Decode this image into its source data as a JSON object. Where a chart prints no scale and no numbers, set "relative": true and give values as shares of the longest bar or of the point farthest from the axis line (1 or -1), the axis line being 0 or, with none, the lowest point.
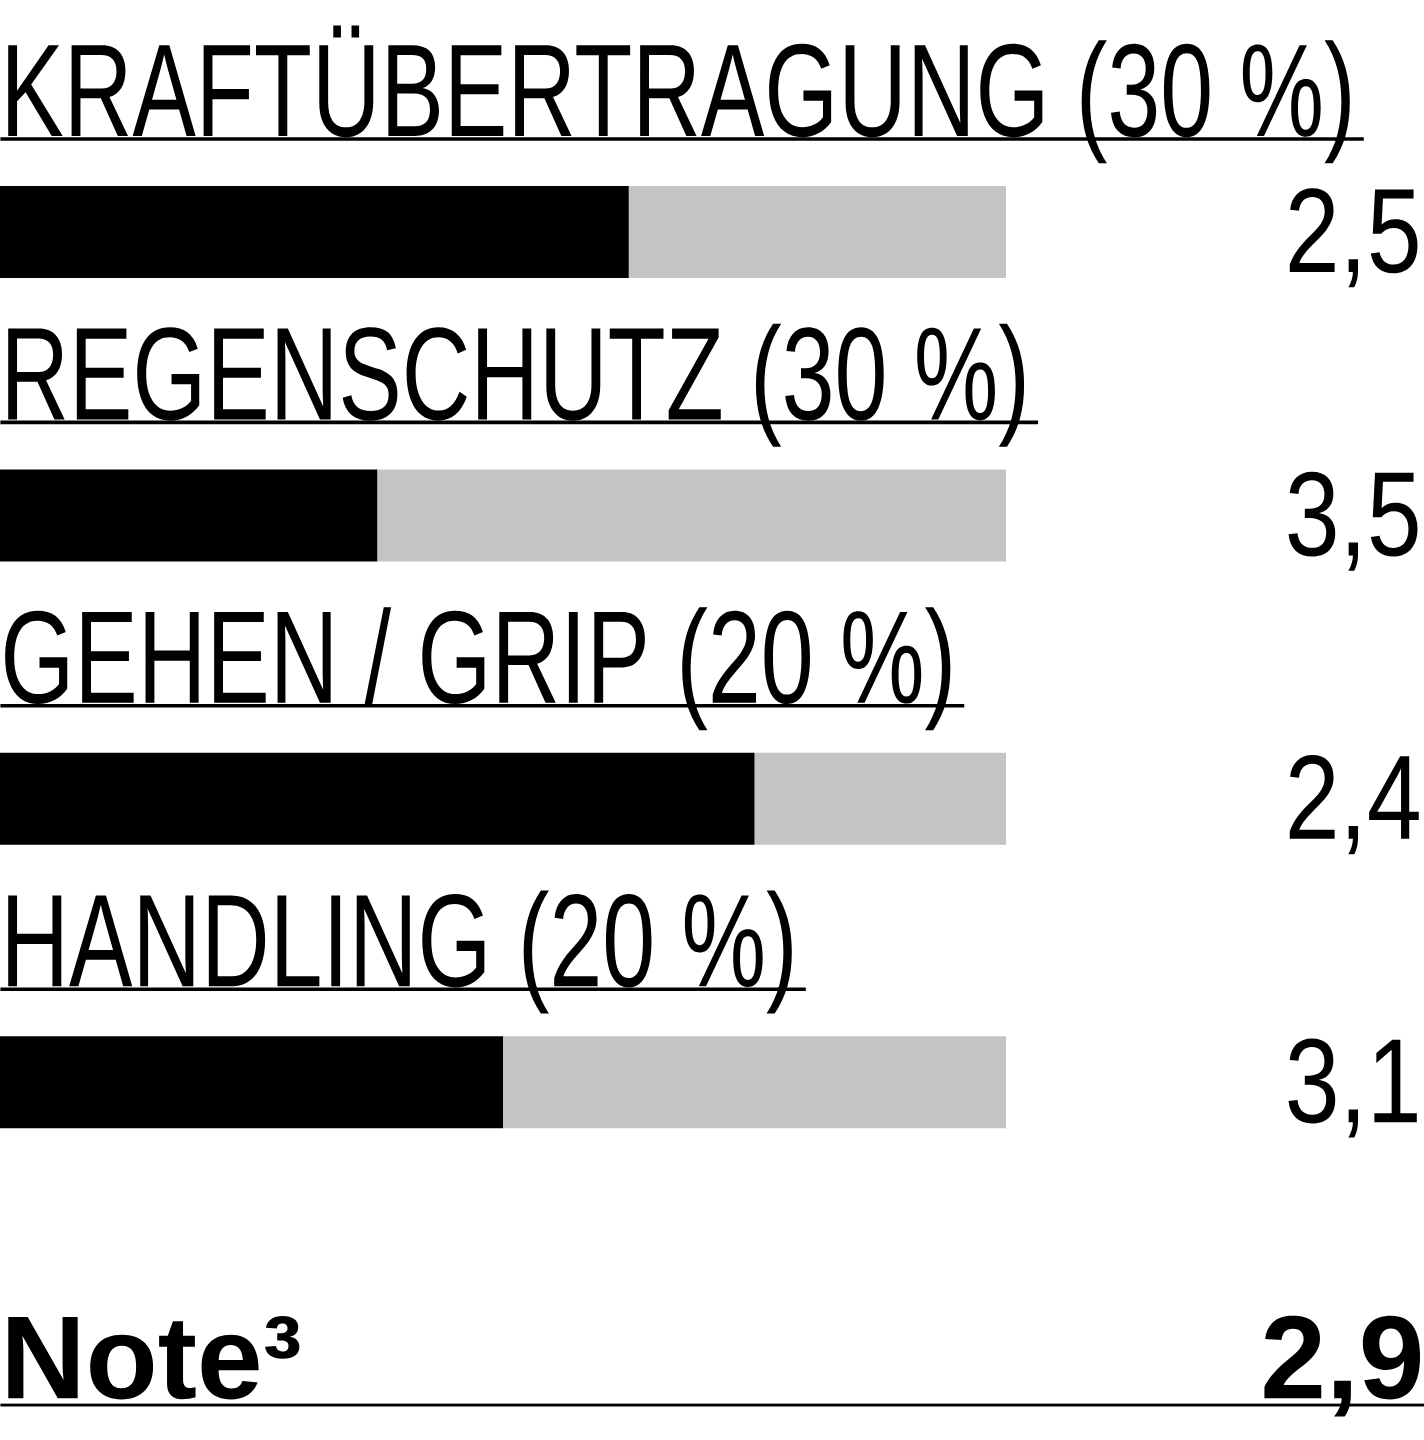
{
  "chart_data": {
    "type": "bar",
    "orientation": "horizontal",
    "stacked": true,
    "relative": true,
    "categories": [
      "KRAFTÜBERTRAGUNG (30 %)",
      "REGENSCHUTZ (30 %)",
      "GEHEN / GRIP (20 %)",
      "HANDLING (20 %)"
    ],
    "series": [
      {
        "color": "#000000",
        "values": [
          0.625,
          0.375,
          0.75,
          0.5
        ]
      },
      {
        "color": "#c4c4c4",
        "values": [
          0.375,
          0.625,
          0.25,
          0.5
        ]
      }
    ],
    "annotations": [
      "2,5",
      "3,5",
      "2,4",
      "3,1",
      "Note³",
      "2,9"
    ]
  }
}
